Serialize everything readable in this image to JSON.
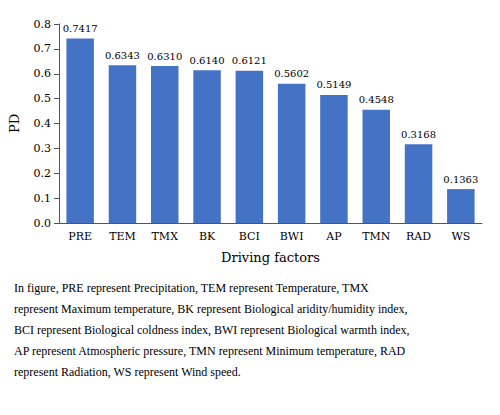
{
  "chart_data": {
    "type": "bar",
    "categories": [
      "PRE",
      "TEM",
      "TMX",
      "BK",
      "BCI",
      "BWI",
      "AP",
      "TMN",
      "RAD",
      "WS"
    ],
    "values": [
      0.7417,
      0.6343,
      0.631,
      0.614,
      0.6121,
      0.5602,
      0.5149,
      0.4548,
      0.3168,
      0.1363
    ],
    "value_labels": [
      "0.7417",
      "0.6343",
      "0.6310",
      "0.6140",
      "0.6121",
      "0.5602",
      "0.5149",
      "0.4548",
      "0.3168",
      "0.1363"
    ],
    "data_labels": true,
    "color": "#4472C4",
    "xlabel": "Driving factors",
    "ylabel": "PD",
    "ylim": [
      0,
      0.8
    ],
    "yticks": [
      {
        "value": 0,
        "label": "0.0"
      },
      0.1,
      0.2,
      0.3,
      0.4,
      0.5,
      0.6,
      0.7,
      0.8
    ],
    "grid": false,
    "annotations": [
      "In figure, PRE represent Precipitation, TEM represent Temperature, TMX",
      "represent Maximum temperature, BK represent Biological aridity/humidity index,",
      "BCI represent Biological coldness index, BWI represent Biological warmth index,",
      "AP represent Atmospheric pressure, TMN represent Minimum temperature, RAD",
      "represent Radiation, WS represent Wind speed."
    ]
  }
}
